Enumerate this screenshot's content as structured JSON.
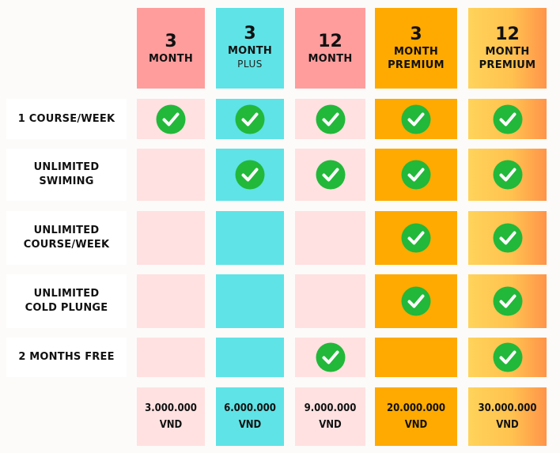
{
  "plans": [
    {
      "num": "3",
      "label": "MONTH",
      "sub": "",
      "price": "3.000.000",
      "currency": "VND"
    },
    {
      "num": "3",
      "label": "MONTH",
      "sub": "PLUS",
      "price": "6.000.000",
      "currency": "VND"
    },
    {
      "num": "12",
      "label": "MONTH",
      "sub": "",
      "price": "9.000.000",
      "currency": "VND"
    },
    {
      "num": "3",
      "label": "MONTH",
      "sub": "PREMIUM",
      "price": "20.000.000",
      "currency": "VND"
    },
    {
      "num": "12",
      "label": "MONTH",
      "sub": "PREMIUM",
      "price": "30.000.000",
      "currency": "VND"
    }
  ],
  "features": [
    {
      "label": "1 COURSE/WEEK",
      "included": [
        true,
        true,
        true,
        true,
        true
      ]
    },
    {
      "label": "UNLIMITED\nSWIMING",
      "included": [
        false,
        true,
        true,
        true,
        true
      ]
    },
    {
      "label": "UNLIMITED\nCOURSE/WEEK",
      "included": [
        false,
        false,
        false,
        true,
        true
      ]
    },
    {
      "label": "UNLIMITED\nCOLD PLUNGE",
      "included": [
        false,
        false,
        false,
        true,
        true
      ]
    },
    {
      "label": "2 MONTHS FREE",
      "included": [
        false,
        false,
        true,
        false,
        true
      ]
    }
  ],
  "colors": {
    "check": "#22b83a",
    "header_3_month": "#ff9d9d",
    "plus": "#5fe3e6",
    "premium": "#ffaa00",
    "light_pink": "#ffe1e1"
  },
  "icons": {
    "included": "check-circle-icon"
  }
}
